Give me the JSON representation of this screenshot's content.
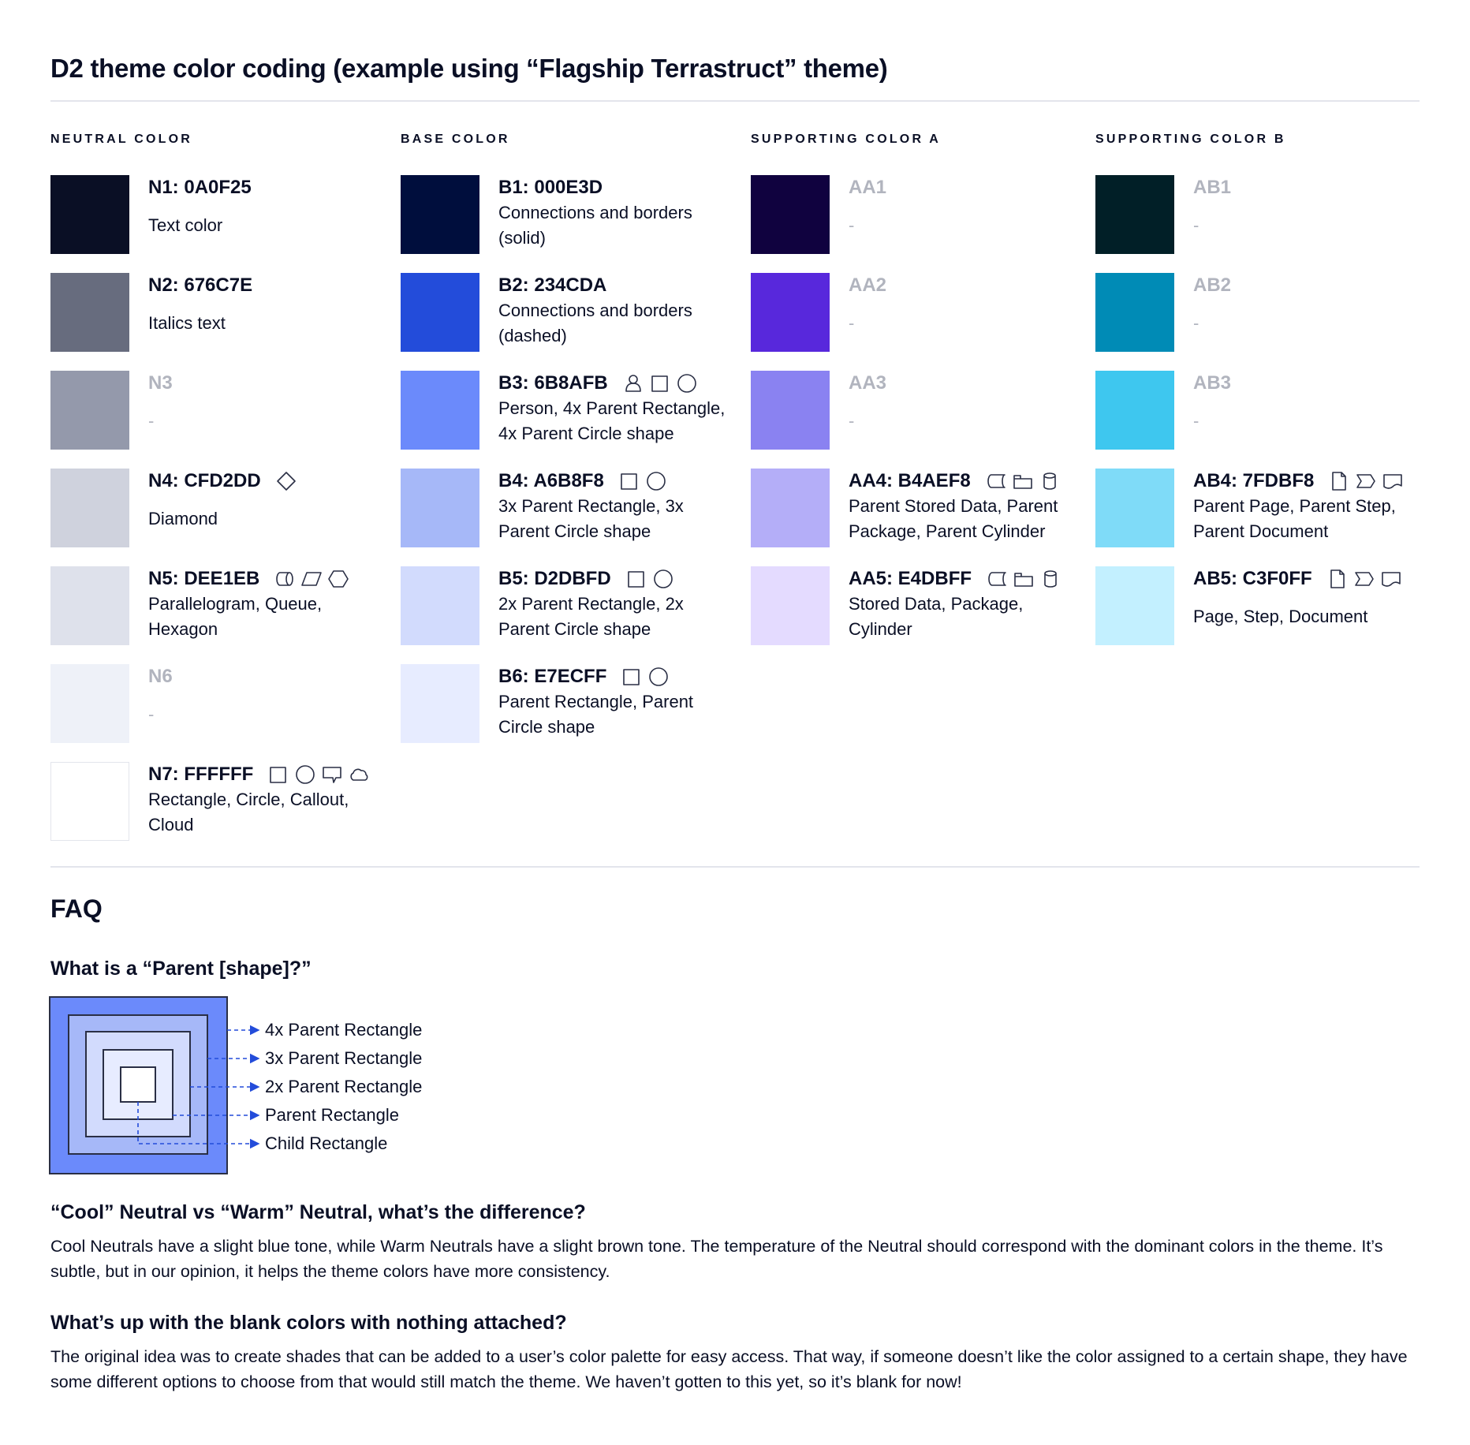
{
  "title": "D2 theme color coding (example using “Flagship Terrastruct” theme)",
  "columns": [
    {
      "heading": "NEUTRAL COLOR",
      "items": [
        {
          "label": "N1: 0A0F25",
          "color": "#0A0F25",
          "lines": [
            "Text color"
          ],
          "icons": []
        },
        {
          "label": "N2: 676C7E",
          "color": "#676C7E",
          "lines": [
            "Italics text"
          ],
          "icons": []
        },
        {
          "label": "N3",
          "color": "#9499AB",
          "lines": [
            "-"
          ],
          "icons": [],
          "muted": true
        },
        {
          "label": "N4: CFD2DD",
          "color": "#CFD2DD",
          "lines": [
            "Diamond"
          ],
          "icons": [
            "diamond"
          ]
        },
        {
          "label": "N5: DEE1EB",
          "color": "#DEE1EB",
          "lines": [
            "Parallelogram, Queue,",
            "Hexagon"
          ],
          "icons": [
            "queue",
            "parallelogram",
            "hexagon"
          ]
        },
        {
          "label": "N6",
          "color": "#EEF1F8",
          "lines": [
            "-"
          ],
          "icons": [],
          "muted": true
        },
        {
          "label": "N7: FFFFFF",
          "color": "#FFFFFF",
          "lines": [
            "Rectangle, Circle, Callout,",
            "Cloud"
          ],
          "icons": [
            "rectangle",
            "circle",
            "callout",
            "cloud"
          ]
        }
      ]
    },
    {
      "heading": "BASE COLOR",
      "items": [
        {
          "label": "B1: 000E3D",
          "color": "#000E3D",
          "lines": [
            "Connections and borders",
            "(solid)"
          ],
          "icons": []
        },
        {
          "label": "B2: 234CDA",
          "color": "#234CDA",
          "lines": [
            "Connections and borders",
            "(dashed)"
          ],
          "icons": []
        },
        {
          "label": "B3: 6B8AFB",
          "color": "#6B8AFB",
          "lines": [
            "Person, 4x Parent Rectangle,",
            "4x Parent Circle shape"
          ],
          "icons": [
            "person",
            "rectangle",
            "circle"
          ]
        },
        {
          "label": "B4: A6B8F8",
          "color": "#A6B8F8",
          "lines": [
            "3x Parent Rectangle, 3x",
            "Parent Circle shape"
          ],
          "icons": [
            "rectangle",
            "circle"
          ]
        },
        {
          "label": "B5: D2DBFD",
          "color": "#D2DBFD",
          "lines": [
            "2x Parent Rectangle, 2x",
            "Parent Circle shape"
          ],
          "icons": [
            "rectangle",
            "circle"
          ]
        },
        {
          "label": "B6: E7ECFF",
          "color": "#E7ECFF",
          "lines": [
            "Parent Rectangle, Parent",
            "Circle shape"
          ],
          "icons": [
            "rectangle",
            "circle"
          ]
        }
      ]
    },
    {
      "heading": "SUPPORTING COLOR A",
      "items": [
        {
          "label": "AA1",
          "color": "#10023F",
          "lines": [
            "-"
          ],
          "icons": [],
          "muted": true
        },
        {
          "label": "AA2",
          "color": "#5828DC",
          "lines": [
            "-"
          ],
          "icons": [],
          "muted": true
        },
        {
          "label": "AA3",
          "color": "#8A82F1",
          "lines": [
            "-"
          ],
          "icons": [],
          "muted": true
        },
        {
          "label": "AA4: B4AEF8",
          "color": "#B4AEF8",
          "lines": [
            "Parent Stored Data, Parent",
            "Package,  Parent Cylinder"
          ],
          "icons": [
            "stored-data",
            "package",
            "cylinder"
          ]
        },
        {
          "label": "AA5: E4DBFF",
          "color": "#E4DBFF",
          "lines": [
            "Stored Data, Package,",
            "Cylinder"
          ],
          "icons": [
            "stored-data",
            "package",
            "cylinder"
          ]
        }
      ]
    },
    {
      "heading": "SUPPORTING COLOR B",
      "items": [
        {
          "label": "AB1",
          "color": "#011F27",
          "lines": [
            "-"
          ],
          "icons": [],
          "muted": true
        },
        {
          "label": "AB2",
          "color": "#008BB6",
          "lines": [
            "-"
          ],
          "icons": [],
          "muted": true
        },
        {
          "label": "AB3",
          "color": "#3EC7EF",
          "lines": [
            "-"
          ],
          "icons": [],
          "muted": true
        },
        {
          "label": "AB4: 7FDBF8",
          "color": "#7FDBF8",
          "lines": [
            "Parent Page, Parent Step,",
            "Parent Document"
          ],
          "icons": [
            "page",
            "step",
            "document"
          ]
        },
        {
          "label": "AB5: C3F0FF",
          "color": "#C3F0FF",
          "lines": [
            "Page, Step, Document"
          ],
          "icons": [
            "page",
            "step",
            "document"
          ]
        }
      ]
    }
  ],
  "faq": {
    "heading": "FAQ",
    "q1": "What is a “Parent [shape]?”",
    "diagram_labels": [
      "4x Parent Rectangle",
      "3x Parent Rectangle",
      "2x Parent Rectangle",
      "Parent Rectangle",
      "Child Rectangle"
    ],
    "diagram_colors": [
      "#6B8AFB",
      "#A6B8F8",
      "#D2DBFD",
      "#E7ECFF",
      "#FFFFFF"
    ],
    "arrow_color": "#234CDA",
    "q2": "“Cool” Neutral vs “Warm” Neutral, what’s the difference?",
    "a2": "Cool Neutrals have a slight blue tone, while Warm Neutrals have a slight brown tone. The temperature of the Neutral should correspond with the dominant colors in the theme. It’s subtle, but in our opinion, it helps the theme colors have more consistency.",
    "q3": "What’s up with the blank colors with nothing attached?",
    "a3": "The original idea was to create shades that can be added to a user’s color palette for easy access. That way, if someone doesn’t like the color assigned to a certain shape, they have some different options to choose from that would still match the theme. We haven’t gotten to this yet, so it’s blank for now!"
  }
}
